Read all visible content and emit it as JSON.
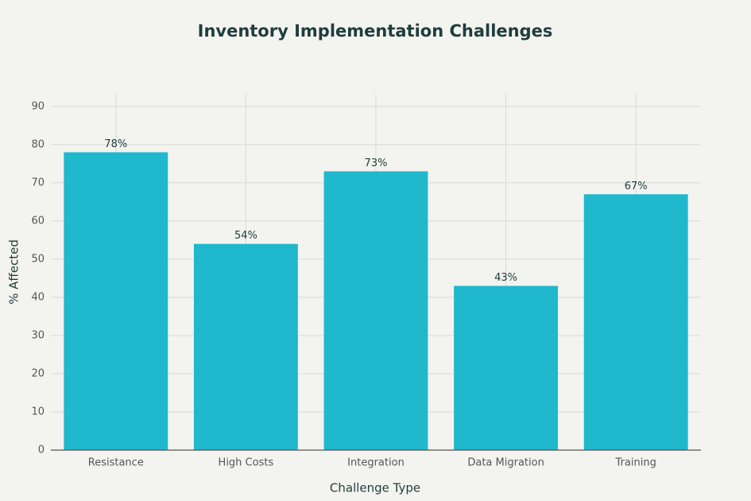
{
  "chart_data": {
    "type": "bar",
    "title": "Inventory Implementation Challenges",
    "x_label": "Challenge Type",
    "y_label": "% Affected",
    "categories": [
      "Resistance",
      "High Costs",
      "Integration",
      "Data Migration",
      "Training"
    ],
    "values": [
      78,
      54,
      73,
      43,
      67
    ],
    "value_labels": [
      "78%",
      "54%",
      "73%",
      "43%",
      "67%"
    ],
    "color": "#1fb8cd",
    "ylim": [
      0,
      93.3
    ],
    "yticks": [
      0,
      10,
      20,
      30,
      40,
      50,
      60,
      70,
      80,
      90
    ],
    "grid": true
  }
}
